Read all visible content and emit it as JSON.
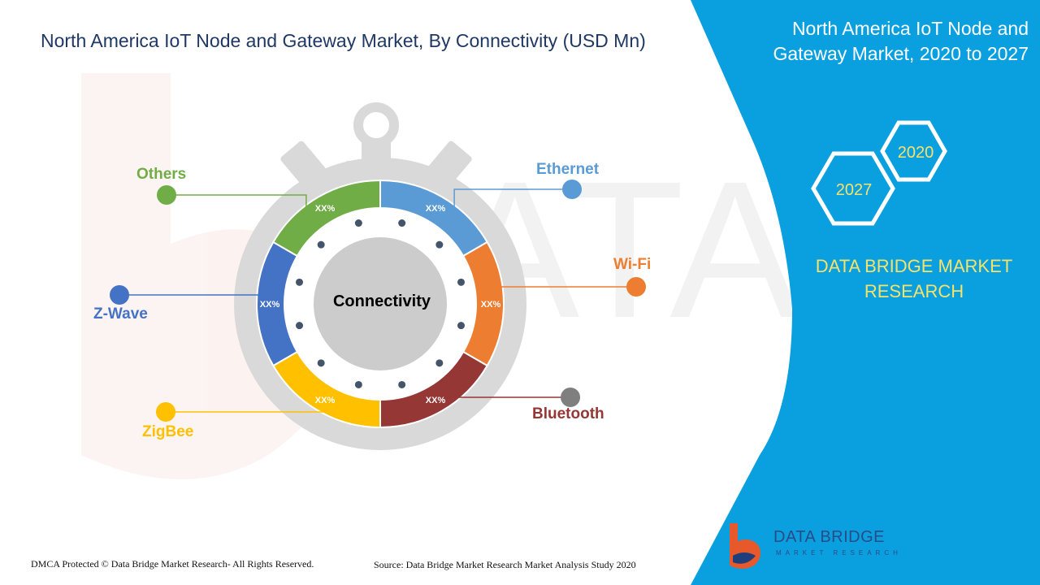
{
  "title": "North America IoT Node and Gateway Market, By Connectivity (USD Mn)",
  "side_panel": {
    "title": "North America IoT Node and Gateway Market, 2020 to 2027",
    "years": [
      "2020",
      "2027"
    ],
    "brand": "DATA BRIDGE MARKET RESEARCH"
  },
  "footer": {
    "copyright": "DMCA Protected © Data Bridge Market Research- All Rights Reserved.",
    "source": "Source: Data Bridge Market Research Market Analysis Study 2020"
  },
  "logo": {
    "name": "DATA BRIDGE",
    "tagline": "MARKET RESEARCH"
  },
  "colors": {
    "panel_blue": "#0aa0e0",
    "gauge_gray": "#d9d9d9",
    "center_gray": "#cccccc",
    "dot": "#44546a"
  },
  "chart_data": {
    "type": "pie",
    "center_label": "Connectivity",
    "series": [
      {
        "name": "Ethernet",
        "value_label": "XX%",
        "color": "#5b9bd5",
        "share": 1
      },
      {
        "name": "Wi-Fi",
        "value_label": "XX%",
        "color": "#ed7d31",
        "share": 1
      },
      {
        "name": "Bluetooth",
        "value_label": "XX%",
        "color": "#953735",
        "share": 1
      },
      {
        "name": "ZigBee",
        "value_label": "XX%",
        "color": "#ffc000",
        "share": 1
      },
      {
        "name": "Z-Wave",
        "value_label": "XX%",
        "color": "#4472c4",
        "share": 1
      },
      {
        "name": "Others",
        "value_label": "XX%",
        "color": "#70ad47",
        "share": 1
      }
    ]
  }
}
